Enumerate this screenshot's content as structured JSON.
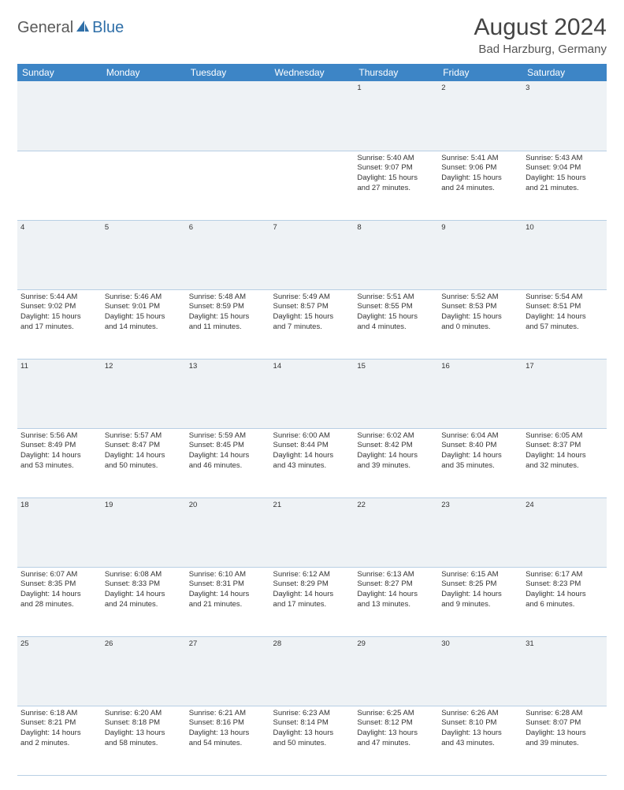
{
  "brand": {
    "part1": "General",
    "part2": "Blue"
  },
  "title": "August 2024",
  "location": "Bad Harzburg, Germany",
  "colors": {
    "header_bg": "#3d85c6",
    "header_text": "#ffffff",
    "daynum_bg": "#eef2f5",
    "cell_border": "#b8cfe4",
    "text": "#333333",
    "brand_gray": "#5a5a5a",
    "brand_blue": "#2f6fa8"
  },
  "weekdays": [
    "Sunday",
    "Monday",
    "Tuesday",
    "Wednesday",
    "Thursday",
    "Friday",
    "Saturday"
  ],
  "weeks": [
    {
      "nums": [
        "",
        "",
        "",
        "",
        "1",
        "2",
        "3"
      ],
      "cells": [
        null,
        null,
        null,
        null,
        {
          "sunrise": "Sunrise: 5:40 AM",
          "sunset": "Sunset: 9:07 PM",
          "d1": "Daylight: 15 hours",
          "d2": "and 27 minutes."
        },
        {
          "sunrise": "Sunrise: 5:41 AM",
          "sunset": "Sunset: 9:06 PM",
          "d1": "Daylight: 15 hours",
          "d2": "and 24 minutes."
        },
        {
          "sunrise": "Sunrise: 5:43 AM",
          "sunset": "Sunset: 9:04 PM",
          "d1": "Daylight: 15 hours",
          "d2": "and 21 minutes."
        }
      ]
    },
    {
      "nums": [
        "4",
        "5",
        "6",
        "7",
        "8",
        "9",
        "10"
      ],
      "cells": [
        {
          "sunrise": "Sunrise: 5:44 AM",
          "sunset": "Sunset: 9:02 PM",
          "d1": "Daylight: 15 hours",
          "d2": "and 17 minutes."
        },
        {
          "sunrise": "Sunrise: 5:46 AM",
          "sunset": "Sunset: 9:01 PM",
          "d1": "Daylight: 15 hours",
          "d2": "and 14 minutes."
        },
        {
          "sunrise": "Sunrise: 5:48 AM",
          "sunset": "Sunset: 8:59 PM",
          "d1": "Daylight: 15 hours",
          "d2": "and 11 minutes."
        },
        {
          "sunrise": "Sunrise: 5:49 AM",
          "sunset": "Sunset: 8:57 PM",
          "d1": "Daylight: 15 hours",
          "d2": "and 7 minutes."
        },
        {
          "sunrise": "Sunrise: 5:51 AM",
          "sunset": "Sunset: 8:55 PM",
          "d1": "Daylight: 15 hours",
          "d2": "and 4 minutes."
        },
        {
          "sunrise": "Sunrise: 5:52 AM",
          "sunset": "Sunset: 8:53 PM",
          "d1": "Daylight: 15 hours",
          "d2": "and 0 minutes."
        },
        {
          "sunrise": "Sunrise: 5:54 AM",
          "sunset": "Sunset: 8:51 PM",
          "d1": "Daylight: 14 hours",
          "d2": "and 57 minutes."
        }
      ]
    },
    {
      "nums": [
        "11",
        "12",
        "13",
        "14",
        "15",
        "16",
        "17"
      ],
      "cells": [
        {
          "sunrise": "Sunrise: 5:56 AM",
          "sunset": "Sunset: 8:49 PM",
          "d1": "Daylight: 14 hours",
          "d2": "and 53 minutes."
        },
        {
          "sunrise": "Sunrise: 5:57 AM",
          "sunset": "Sunset: 8:47 PM",
          "d1": "Daylight: 14 hours",
          "d2": "and 50 minutes."
        },
        {
          "sunrise": "Sunrise: 5:59 AM",
          "sunset": "Sunset: 8:45 PM",
          "d1": "Daylight: 14 hours",
          "d2": "and 46 minutes."
        },
        {
          "sunrise": "Sunrise: 6:00 AM",
          "sunset": "Sunset: 8:44 PM",
          "d1": "Daylight: 14 hours",
          "d2": "and 43 minutes."
        },
        {
          "sunrise": "Sunrise: 6:02 AM",
          "sunset": "Sunset: 8:42 PM",
          "d1": "Daylight: 14 hours",
          "d2": "and 39 minutes."
        },
        {
          "sunrise": "Sunrise: 6:04 AM",
          "sunset": "Sunset: 8:40 PM",
          "d1": "Daylight: 14 hours",
          "d2": "and 35 minutes."
        },
        {
          "sunrise": "Sunrise: 6:05 AM",
          "sunset": "Sunset: 8:37 PM",
          "d1": "Daylight: 14 hours",
          "d2": "and 32 minutes."
        }
      ]
    },
    {
      "nums": [
        "18",
        "19",
        "20",
        "21",
        "22",
        "23",
        "24"
      ],
      "cells": [
        {
          "sunrise": "Sunrise: 6:07 AM",
          "sunset": "Sunset: 8:35 PM",
          "d1": "Daylight: 14 hours",
          "d2": "and 28 minutes."
        },
        {
          "sunrise": "Sunrise: 6:08 AM",
          "sunset": "Sunset: 8:33 PM",
          "d1": "Daylight: 14 hours",
          "d2": "and 24 minutes."
        },
        {
          "sunrise": "Sunrise: 6:10 AM",
          "sunset": "Sunset: 8:31 PM",
          "d1": "Daylight: 14 hours",
          "d2": "and 21 minutes."
        },
        {
          "sunrise": "Sunrise: 6:12 AM",
          "sunset": "Sunset: 8:29 PM",
          "d1": "Daylight: 14 hours",
          "d2": "and 17 minutes."
        },
        {
          "sunrise": "Sunrise: 6:13 AM",
          "sunset": "Sunset: 8:27 PM",
          "d1": "Daylight: 14 hours",
          "d2": "and 13 minutes."
        },
        {
          "sunrise": "Sunrise: 6:15 AM",
          "sunset": "Sunset: 8:25 PM",
          "d1": "Daylight: 14 hours",
          "d2": "and 9 minutes."
        },
        {
          "sunrise": "Sunrise: 6:17 AM",
          "sunset": "Sunset: 8:23 PM",
          "d1": "Daylight: 14 hours",
          "d2": "and 6 minutes."
        }
      ]
    },
    {
      "nums": [
        "25",
        "26",
        "27",
        "28",
        "29",
        "30",
        "31"
      ],
      "cells": [
        {
          "sunrise": "Sunrise: 6:18 AM",
          "sunset": "Sunset: 8:21 PM",
          "d1": "Daylight: 14 hours",
          "d2": "and 2 minutes."
        },
        {
          "sunrise": "Sunrise: 6:20 AM",
          "sunset": "Sunset: 8:18 PM",
          "d1": "Daylight: 13 hours",
          "d2": "and 58 minutes."
        },
        {
          "sunrise": "Sunrise: 6:21 AM",
          "sunset": "Sunset: 8:16 PM",
          "d1": "Daylight: 13 hours",
          "d2": "and 54 minutes."
        },
        {
          "sunrise": "Sunrise: 6:23 AM",
          "sunset": "Sunset: 8:14 PM",
          "d1": "Daylight: 13 hours",
          "d2": "and 50 minutes."
        },
        {
          "sunrise": "Sunrise: 6:25 AM",
          "sunset": "Sunset: 8:12 PM",
          "d1": "Daylight: 13 hours",
          "d2": "and 47 minutes."
        },
        {
          "sunrise": "Sunrise: 6:26 AM",
          "sunset": "Sunset: 8:10 PM",
          "d1": "Daylight: 13 hours",
          "d2": "and 43 minutes."
        },
        {
          "sunrise": "Sunrise: 6:28 AM",
          "sunset": "Sunset: 8:07 PM",
          "d1": "Daylight: 13 hours",
          "d2": "and 39 minutes."
        }
      ]
    }
  ]
}
